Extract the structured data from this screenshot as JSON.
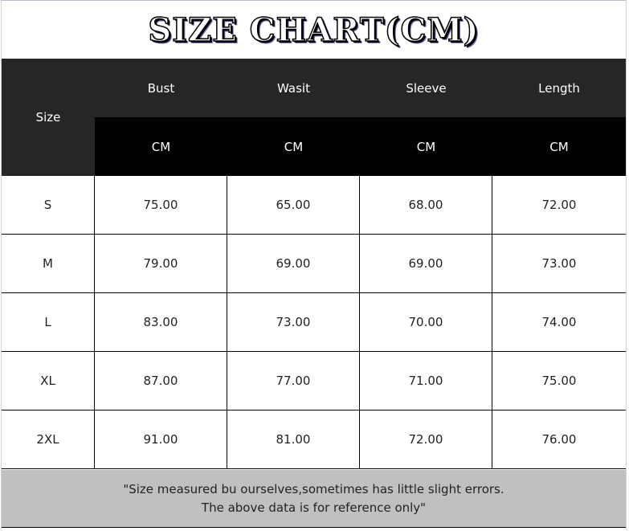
{
  "title": "SIZE CHART(CM)",
  "header": {
    "size_label": "Size",
    "columns": [
      "Bust",
      "Wasit",
      "Sleeve",
      "Length"
    ],
    "units": [
      "CM",
      "CM",
      "CM",
      "CM"
    ]
  },
  "rows": [
    {
      "size": "S",
      "values": [
        "75.00",
        "65.00",
        "68.00",
        "72.00"
      ]
    },
    {
      "size": "M",
      "values": [
        "79.00",
        "69.00",
        "69.00",
        "73.00"
      ]
    },
    {
      "size": "L",
      "values": [
        "83.00",
        "73.00",
        "70.00",
        "74.00"
      ]
    },
    {
      "size": "XL",
      "values": [
        "87.00",
        "77.00",
        "71.00",
        "75.00"
      ]
    },
    {
      "size": "2XL",
      "values": [
        "91.00",
        "81.00",
        "72.00",
        "76.00"
      ]
    }
  ],
  "footer": {
    "line1": "\"Size measured bu ourselves,sometimes has little slight errors.",
    "line2": "The above data is for reference only\""
  },
  "colors": {
    "header_top": "#262626",
    "header_units": "#000000",
    "footer_bg": "#c0c0c0"
  }
}
